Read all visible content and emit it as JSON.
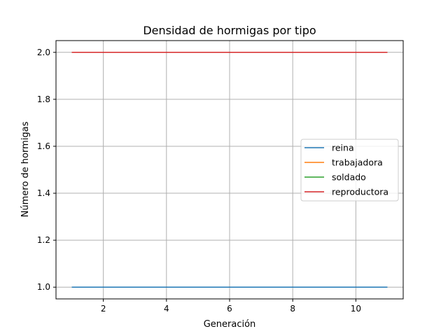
{
  "chart_data": {
    "type": "line",
    "title": "Densidad de hormigas por tipo",
    "xlabel": "Generación",
    "ylabel": "Número de hormigas",
    "xlim": [
      0.5,
      11.5
    ],
    "ylim": [
      0.95,
      2.05
    ],
    "xticks": [
      2,
      4,
      6,
      8,
      10
    ],
    "yticks": [
      1.0,
      1.2,
      1.4,
      1.6,
      1.8,
      2.0
    ],
    "xtick_labels": [
      "2",
      "4",
      "6",
      "8",
      "10"
    ],
    "ytick_labels": [
      "1.0",
      "1.2",
      "1.4",
      "1.6",
      "1.8",
      "2.0"
    ],
    "grid": true,
    "legend_position": "center-right",
    "x": [
      1,
      2,
      3,
      4,
      5,
      6,
      7,
      8,
      9,
      10,
      11
    ],
    "series": [
      {
        "name": "reina",
        "color": "#1f77b4",
        "values": [
          1,
          1,
          1,
          1,
          1,
          1,
          1,
          1,
          1,
          1,
          1
        ]
      },
      {
        "name": "trabajadora",
        "color": "#ff7f0e",
        "values": [
          2,
          2,
          2,
          2,
          2,
          2,
          2,
          2,
          2,
          2,
          2
        ]
      },
      {
        "name": "soldado",
        "color": "#2ca02c",
        "values": [
          2,
          2,
          2,
          2,
          2,
          2,
          2,
          2,
          2,
          2,
          2
        ]
      },
      {
        "name": "reproductora",
        "color": "#d62728",
        "values": [
          2,
          2,
          2,
          2,
          2,
          2,
          2,
          2,
          2,
          2,
          2
        ]
      }
    ]
  }
}
